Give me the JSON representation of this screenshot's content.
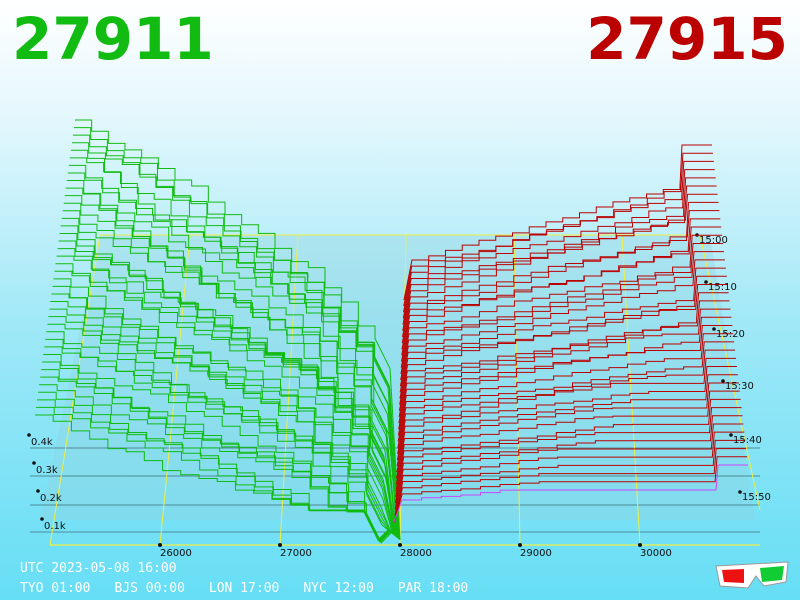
{
  "header": {
    "bid": "27911",
    "ask": "27915",
    "bid_color": "#11bb11",
    "ask_color": "#bb0000"
  },
  "footer": {
    "utc": "UTC 2023-05-08 16:00",
    "zones": [
      "TYO 01:00",
      "BJS 00:00",
      "LON 17:00",
      "NYC 12:00",
      "PAR 18:00"
    ]
  },
  "icons": {
    "glasses": "3d-glasses-icon"
  },
  "chart_data": {
    "type": "area",
    "price_ticks": [
      "26000",
      "27000",
      "28000",
      "29000",
      "30000"
    ],
    "time_ticks": [
      "15:00",
      "15:10",
      "15:20",
      "15:30",
      "15:40",
      "15:50"
    ],
    "volume_ticks": [
      "0.1k",
      "0.2k",
      "0.3k",
      "0.4k"
    ],
    "bid_color": "#11bb11",
    "ask_color": "#bb0000",
    "grid_color": "#eeee44",
    "latest_slice_color": "#cc44ff"
  }
}
